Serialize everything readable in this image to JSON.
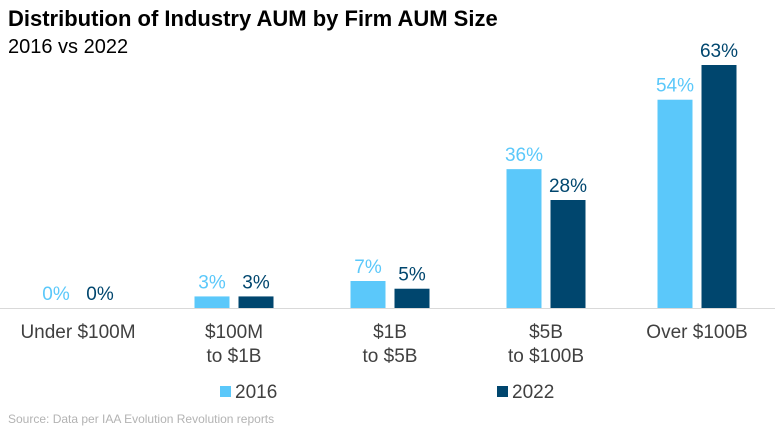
{
  "chart_data": {
    "type": "bar",
    "title": "Distribution of Industry AUM by Firm AUM Size",
    "subtitle": "2016 vs 2022",
    "categories": [
      [
        "Under $100M"
      ],
      [
        "$100M",
        "to $1B"
      ],
      [
        "$1B",
        "to $5B"
      ],
      [
        "$5B",
        "to $100B"
      ],
      [
        "Over $100B"
      ]
    ],
    "series": [
      {
        "name": "2016",
        "values": [
          0,
          3,
          7,
          36,
          54
        ],
        "labels": [
          "0%",
          "3%",
          "7%",
          "36%",
          "54%"
        ],
        "color": "#5bc8fa"
      },
      {
        "name": "2022",
        "values": [
          0,
          3,
          5,
          28,
          63
        ],
        "labels": [
          "0%",
          "3%",
          "5%",
          "28%",
          "63%"
        ],
        "color": "#00466e"
      }
    ],
    "ylim": [
      0,
      63
    ],
    "value_unit": "%",
    "xlabel": "",
    "ylabel": "",
    "grid": false,
    "legend_position": "bottom"
  },
  "source": "Source: Data per IAA Evolution Revolution reports"
}
